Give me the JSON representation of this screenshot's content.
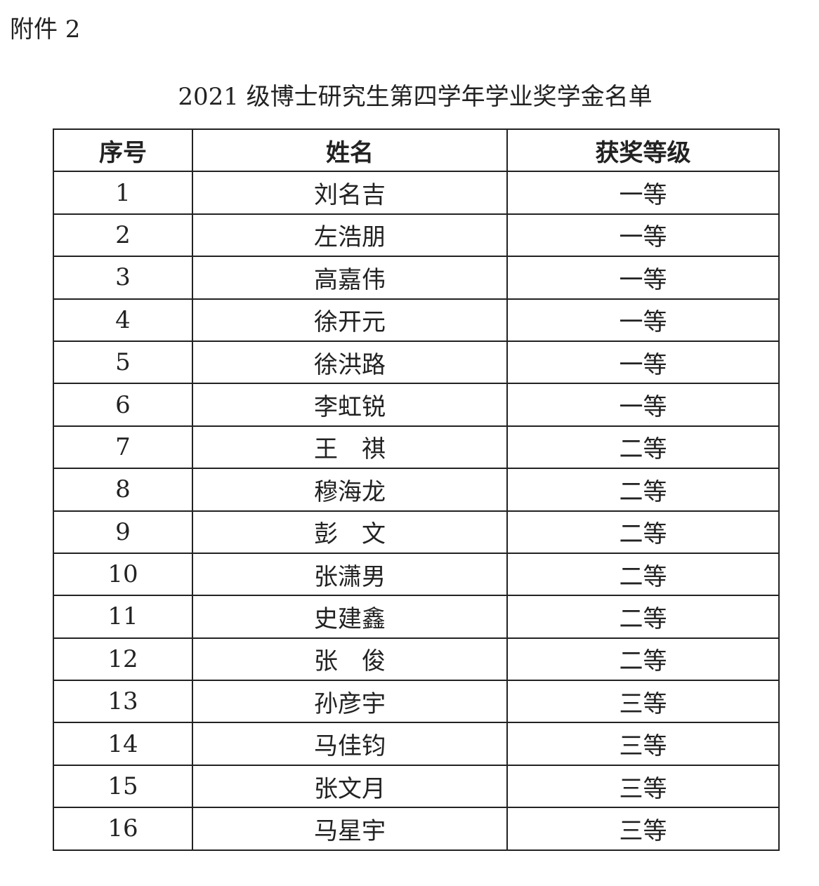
{
  "attachment_label": "附件 2",
  "title": "2021 级博士研究生第四学年学业奖学金名单",
  "table": {
    "headers": [
      "序号",
      "姓名",
      "获奖等级"
    ],
    "rows": [
      [
        "1",
        "刘名吉",
        "一等"
      ],
      [
        "2",
        "左浩朋",
        "一等"
      ],
      [
        "3",
        "高嘉伟",
        "一等"
      ],
      [
        "4",
        "徐开元",
        "一等"
      ],
      [
        "5",
        "徐洪路",
        "一等"
      ],
      [
        "6",
        "李虹锐",
        "一等"
      ],
      [
        "7",
        "王　祺",
        "二等"
      ],
      [
        "8",
        "穆海龙",
        "二等"
      ],
      [
        "9",
        "彭　文",
        "二等"
      ],
      [
        "10",
        "张潇男",
        "二等"
      ],
      [
        "11",
        "史建鑫",
        "二等"
      ],
      [
        "12",
        "张　俊",
        "二等"
      ],
      [
        "13",
        "孙彦宇",
        "三等"
      ],
      [
        "14",
        "马佳钧",
        "三等"
      ],
      [
        "15",
        "张文月",
        "三等"
      ],
      [
        "16",
        "马星宇",
        "三等"
      ]
    ]
  }
}
